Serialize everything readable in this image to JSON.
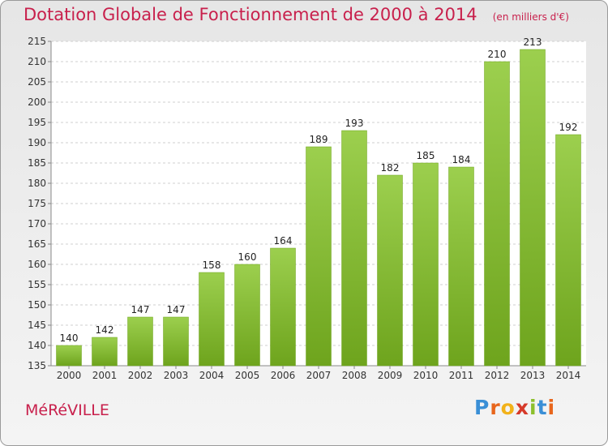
{
  "header": {
    "title": "Dotation Globale de Fonctionnement de 2000 à 2014",
    "subtitle": "(en milliers d'€)"
  },
  "footer": {
    "commune": "MéRéVILLE",
    "logo_letters": [
      "P",
      "r",
      "o",
      "x",
      "i",
      "t",
      "i"
    ],
    "logo_colors": [
      "#3a8fd6",
      "#e8661c",
      "#f2b21a",
      "#d63a2a",
      "#8cbf2c",
      "#3a8fd6",
      "#e8661c"
    ]
  },
  "chart_data": {
    "type": "bar",
    "categories": [
      "2000",
      "2001",
      "2002",
      "2003",
      "2004",
      "2005",
      "2006",
      "2007",
      "2008",
      "2009",
      "2010",
      "2011",
      "2012",
      "2013",
      "2014"
    ],
    "values": [
      140,
      142,
      147,
      147,
      158,
      160,
      164,
      189,
      193,
      182,
      185,
      184,
      210,
      213,
      192
    ],
    "title": "Dotation Globale de Fonctionnement de 2000 à 2014",
    "subtitle": "(en milliers d'€)",
    "ylim": [
      135,
      215
    ],
    "yticks": [
      135,
      140,
      145,
      150,
      155,
      160,
      165,
      170,
      175,
      180,
      185,
      190,
      195,
      200,
      205,
      210,
      215
    ],
    "grid": true,
    "bar_color": "#8cc63f",
    "label_color": "#c8204c"
  }
}
